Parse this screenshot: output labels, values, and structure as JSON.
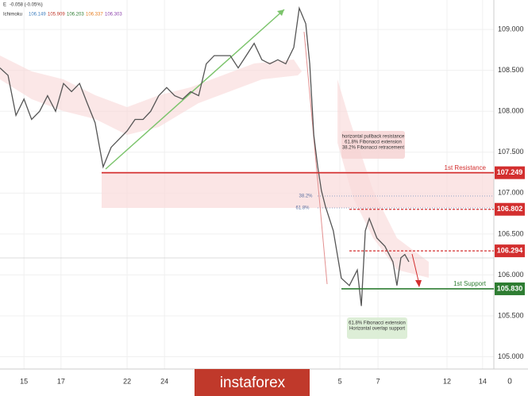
{
  "header": {
    "symbol": "E",
    "change": "-0.058 (-0.05%)",
    "indicator": "Ichimoku",
    "indicator_values": [
      "106.149",
      "105.909",
      "106.203",
      "106.337",
      "106.303"
    ]
  },
  "logo": "instaforex",
  "chart_data": {
    "type": "line",
    "xlim": [
      0,
      136
    ],
    "ylim": [
      104.85,
      109.36
    ],
    "xticks": [
      {
        "value": 6.6,
        "label": "15"
      },
      {
        "value": 16.8,
        "label": "17"
      },
      {
        "value": 35.0,
        "label": "22"
      },
      {
        "value": 45.3,
        "label": "24"
      },
      {
        "value": 93.6,
        "label": "5"
      },
      {
        "value": 104.1,
        "label": "7"
      },
      {
        "value": 123.1,
        "label": "12"
      },
      {
        "value": 132.9,
        "label": "14"
      }
    ],
    "x_axis_corner": "0",
    "yticks": [
      {
        "value": 105,
        "label": "105.000"
      },
      {
        "value": 105.5,
        "label": "105.500"
      },
      {
        "value": 106,
        "label": "106.000"
      },
      {
        "value": 106.5,
        "label": "106.500"
      },
      {
        "value": 107,
        "label": "107.000"
      },
      {
        "value": 107.5,
        "label": "107.500"
      },
      {
        "value": 108,
        "label": "108.000"
      },
      {
        "value": 108.5,
        "label": "108.500"
      },
      {
        "value": 109,
        "label": "109.000"
      }
    ],
    "grid": true,
    "series": [
      {
        "color": "#555555",
        "x": [
          0,
          2.2,
          4.4,
          6.6,
          8.7,
          10.9,
          13.1,
          15.3,
          17.5,
          19.7,
          21.9,
          24.0,
          26.2,
          28.4,
          30.6,
          32.8,
          35.0,
          37.2,
          39.4,
          41.5,
          43.7,
          45.9,
          48.1,
          50.3,
          52.5,
          54.7,
          56.8,
          59.0,
          61.2,
          63.4,
          65.6,
          67.8,
          70.0,
          72.1,
          74.3,
          76.5,
          78.7,
          80.9,
          82.4,
          84.2,
          85.3,
          86.4,
          87.5,
          88.5,
          89.6,
          91.8,
          94.0,
          96.2,
          98.4,
          99.5,
          100.6,
          101.7,
          103.8,
          106.0,
          108.2,
          109.3,
          110.4,
          111.5,
          112.6
        ],
        "values": [
          108.53,
          108.44,
          107.95,
          108.15,
          107.9,
          108.0,
          108.19,
          108.0,
          108.34,
          108.24,
          108.34,
          108.1,
          107.86,
          107.32,
          107.56,
          107.66,
          107.76,
          107.9,
          107.9,
          108.0,
          108.19,
          108.29,
          108.19,
          108.15,
          108.24,
          108.19,
          108.58,
          108.68,
          108.68,
          108.68,
          108.53,
          108.68,
          108.83,
          108.63,
          108.58,
          108.63,
          108.58,
          108.78,
          109.26,
          109.07,
          108.58,
          107.71,
          107.32,
          107.03,
          106.84,
          106.54,
          105.96,
          105.87,
          106.06,
          105.62,
          106.54,
          106.69,
          106.45,
          106.35,
          106.16,
          105.87,
          106.21,
          106.25,
          106.16
        ]
      }
    ],
    "levels": [
      {
        "name": "1st Resistance",
        "value": 107.249,
        "value_label": "107.249",
        "color": "#d32f2f",
        "style": "solid"
      },
      {
        "value": 106.802,
        "value_label": "106.802",
        "color": "#d32f2f",
        "style": "dashed"
      },
      {
        "value": 106.294,
        "value_label": "106.294",
        "color": "#d32f2f",
        "style": "dashed"
      },
      {
        "name": "1st Support",
        "value": 105.83,
        "value_label": "105.830",
        "color": "#2e7d32",
        "style": "solid"
      }
    ],
    "fib_labels": [
      "38.2%",
      "61.8%"
    ],
    "annotations": [
      {
        "lines": [
          "horizontal pullback resistance",
          "61.8% Fibonacci extension",
          "38.2% Fibonacci retracement"
        ]
      },
      {
        "lines": [
          "61.8% Fibonacci extension",
          "Horizontal overlap support"
        ]
      }
    ]
  }
}
